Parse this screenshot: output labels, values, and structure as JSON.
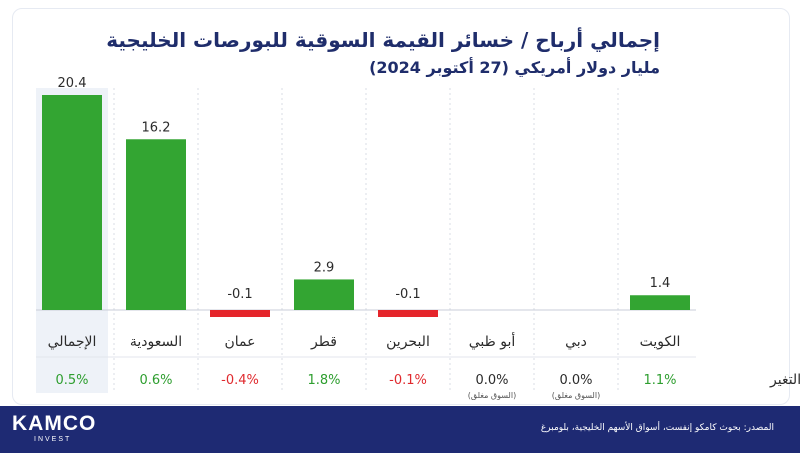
{
  "title": "إجمالي أرباح / خسائر القيمة السوقية للبورصات الخليجية",
  "subtitle": "مليار دولار أمريكي (27 أكتوبر 2024)",
  "change_label": "التغير",
  "source": "المصدر: بحوث كامكو إنفست، أسواق الأسهم الخليجية، بلومبرغ",
  "logo": {
    "main": "KAMCO",
    "sub": "INVEST"
  },
  "colors": {
    "positive": "#33a532",
    "negative": "#e5252b",
    "positive_text": "#2e9e2f",
    "negative_text": "#e02a2e",
    "text": "#2b2b2b",
    "title": "#1f2d6b",
    "highlight": "#eef2f8"
  },
  "chart_data": {
    "type": "bar",
    "title": "إجمالي أرباح / خسائر القيمة السوقية للبورصات الخليجية",
    "subtitle": "مليار دولار أمريكي (27 أكتوبر 2024)",
    "unit": "مليار دولار أمريكي",
    "categories": [
      "الإجمالي",
      "السعودية",
      "عمان",
      "قطر",
      "البحرين",
      "أبو ظبي",
      "دبي",
      "الكويت"
    ],
    "values": [
      20.4,
      16.2,
      -0.1,
      2.9,
      -0.1,
      0.0,
      0.0,
      1.4
    ],
    "value_labels": [
      "20.4",
      "16.2",
      "-0.1",
      "2.9",
      "-0.1",
      "",
      "",
      "1.4"
    ],
    "changes": [
      "0.5%",
      "0.6%",
      "-0.4%",
      "1.8%",
      "-0.1%",
      "0.0%",
      "0.0%",
      "1.1%"
    ],
    "notes": [
      "",
      "",
      "",
      "",
      "",
      "(السوق مغلق)",
      "(السوق مغلق)",
      ""
    ],
    "highlighted": "الإجمالي",
    "ylim": [
      -1,
      21
    ]
  }
}
